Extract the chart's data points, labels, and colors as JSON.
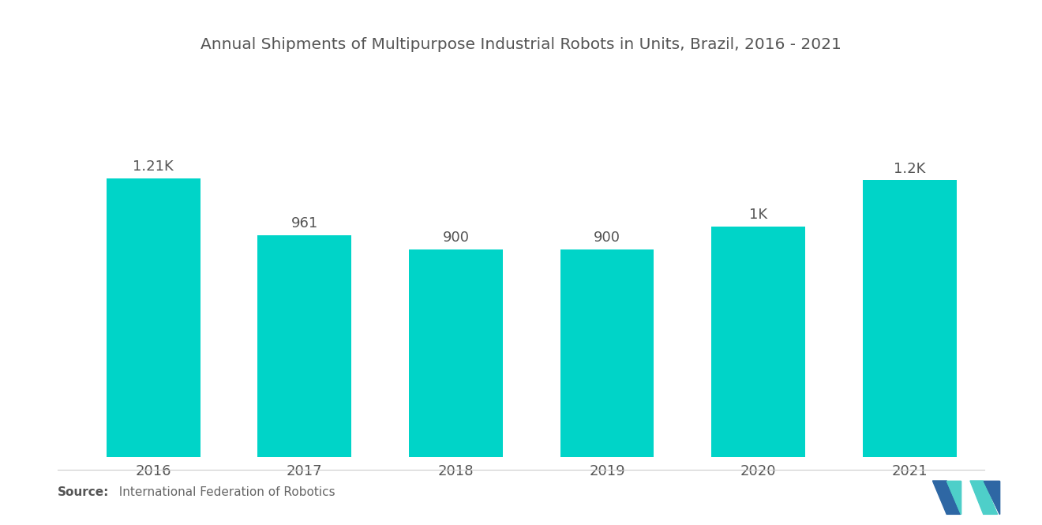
{
  "title": "Annual Shipments of Multipurpose Industrial Robots in Units, Brazil, 2016 - 2021",
  "categories": [
    "2016",
    "2017",
    "2018",
    "2019",
    "2020",
    "2021"
  ],
  "values": [
    1210,
    961,
    900,
    900,
    1000,
    1200
  ],
  "labels": [
    "1.21K",
    "961",
    "900",
    "900",
    "1K",
    "1.2K"
  ],
  "bar_color": "#00D4C8",
  "background_color": "#ffffff",
  "title_fontsize": 14.5,
  "label_fontsize": 13,
  "tick_fontsize": 13,
  "source_bold": "Source:",
  "source_rest": "  International Federation of Robotics",
  "ylim": [
    0,
    1550
  ],
  "bar_width": 0.62,
  "logo_blue": "#2E67A4",
  "logo_teal": "#4ECFC9"
}
